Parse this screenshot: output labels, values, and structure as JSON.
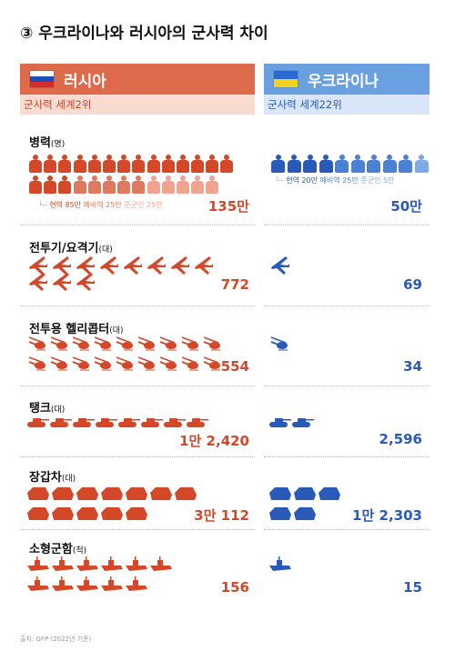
{
  "title": "③ 우크라이나와 러시아의 군사력 차이",
  "russia": {
    "name": "러시아",
    "rank": "군사력 세계2위",
    "flag": [
      "#ffffff",
      "#1c4fb3",
      "#d42b2b"
    ]
  },
  "ukraine": {
    "name": "우크라이나",
    "rank": "군사력 세계22위",
    "flag": [
      "#2a6ad0",
      "#f2d320"
    ]
  },
  "colors": {
    "ru_accent": "#d4482a",
    "ru_light": "#f0a38f",
    "ua_accent": "#2a5ab8"
  },
  "categories": [
    {
      "label": "병력",
      "unit": "(명)",
      "ru_value": "135만",
      "ua_value": "50만"
    },
    {
      "label": "전투기/요격기",
      "unit": "(대)",
      "ru_value": "772",
      "ua_value": "69"
    },
    {
      "label": "전투용 헬리콥터",
      "unit": "(대)",
      "ru_value": "554",
      "ua_value": "34"
    },
    {
      "label": "탱크",
      "unit": "(대)",
      "ru_value": "1만 2,420",
      "ua_value": "2,596"
    },
    {
      "label": "장갑차",
      "unit": "(대)",
      "ru_value": "3만 112",
      "ua_value": "1만 2,303"
    },
    {
      "label": "소형군함",
      "unit": "(척)",
      "ru_value": "156",
      "ua_value": "15"
    }
  ],
  "notes": {
    "ru": {
      "active": "현역 85만",
      "reserve": "예비역 25만",
      "para": "준군인 25만"
    },
    "ua": {
      "active": "현역 20만",
      "reserve": "예비역 25만",
      "para": "준군인 5만"
    }
  },
  "source": "출처: GFP (2022년 기준)"
}
